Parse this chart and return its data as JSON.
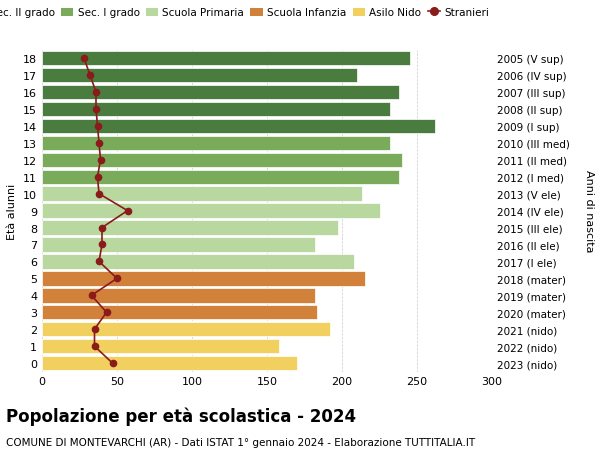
{
  "ages": [
    18,
    17,
    16,
    15,
    14,
    13,
    12,
    11,
    10,
    9,
    8,
    7,
    6,
    5,
    4,
    3,
    2,
    1,
    0
  ],
  "anni_nascita": [
    "2005 (V sup)",
    "2006 (IV sup)",
    "2007 (III sup)",
    "2008 (II sup)",
    "2009 (I sup)",
    "2010 (III med)",
    "2011 (II med)",
    "2012 (I med)",
    "2013 (V ele)",
    "2014 (IV ele)",
    "2015 (III ele)",
    "2016 (II ele)",
    "2017 (I ele)",
    "2018 (mater)",
    "2019 (mater)",
    "2020 (mater)",
    "2021 (nido)",
    "2022 (nido)",
    "2023 (nido)"
  ],
  "bar_values": [
    245,
    210,
    238,
    232,
    262,
    232,
    240,
    238,
    213,
    225,
    197,
    182,
    208,
    215,
    182,
    183,
    192,
    158,
    170
  ],
  "bar_colors": [
    "#4a7c3f",
    "#4a7c3f",
    "#4a7c3f",
    "#4a7c3f",
    "#4a7c3f",
    "#7aab5a",
    "#7aab5a",
    "#7aab5a",
    "#b8d8a0",
    "#b8d8a0",
    "#b8d8a0",
    "#b8d8a0",
    "#b8d8a0",
    "#d2813a",
    "#d2813a",
    "#d2813a",
    "#f2d060",
    "#f2d060",
    "#f2d060"
  ],
  "stranieri_values": [
    28,
    32,
    36,
    36,
    37,
    38,
    39,
    37,
    38,
    57,
    40,
    40,
    38,
    50,
    33,
    43,
    35,
    35,
    47
  ],
  "stranieri_color": "#8b1a1a",
  "legend_items": [
    {
      "label": "Sec. II grado",
      "color": "#4a7c3f"
    },
    {
      "label": "Sec. I grado",
      "color": "#7aab5a"
    },
    {
      "label": "Scuola Primaria",
      "color": "#b8d8a0"
    },
    {
      "label": "Scuola Infanzia",
      "color": "#d2813a"
    },
    {
      "label": "Asilo Nido",
      "color": "#f2d060"
    },
    {
      "label": "Stranieri",
      "color": "#8b1a1a"
    }
  ],
  "ylabel_left": "Età alunni",
  "ylabel_right": "Anni di nascita",
  "xlim": [
    0,
    300
  ],
  "xticks": [
    0,
    50,
    100,
    150,
    200,
    250,
    300
  ],
  "title": "Popolazione per età scolastica - 2024",
  "subtitle": "COMUNE DI MONTEVARCHI (AR) - Dati ISTAT 1° gennaio 2024 - Elaborazione TUTTITALIA.IT",
  "title_fontsize": 12,
  "subtitle_fontsize": 7.5,
  "background_color": "#ffffff",
  "grid_color": "#cccccc"
}
